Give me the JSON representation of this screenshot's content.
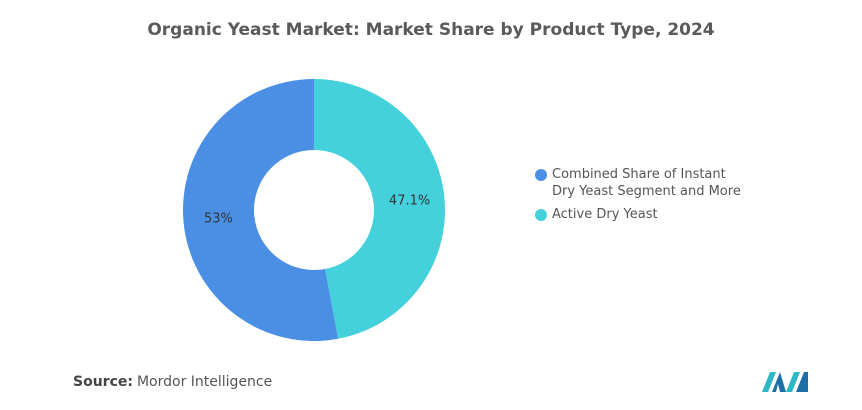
{
  "chart_data": {
    "type": "donut",
    "title": "Organic Yeast Market: Market Share by Product Type, 2024",
    "series": [
      {
        "name": "Combined Share of Instant Dry Yeast Segment and More",
        "color": "#4a8fe3",
        "values": [
          53
        ],
        "value_labels": [
          "53%"
        ]
      },
      {
        "name": "Active Dry Yeast",
        "color": "#45d1dc",
        "values": [
          47.1
        ],
        "value_labels": [
          "47.1%"
        ]
      }
    ],
    "source_label": "Source:",
    "source": "Mordor Intelligence"
  }
}
